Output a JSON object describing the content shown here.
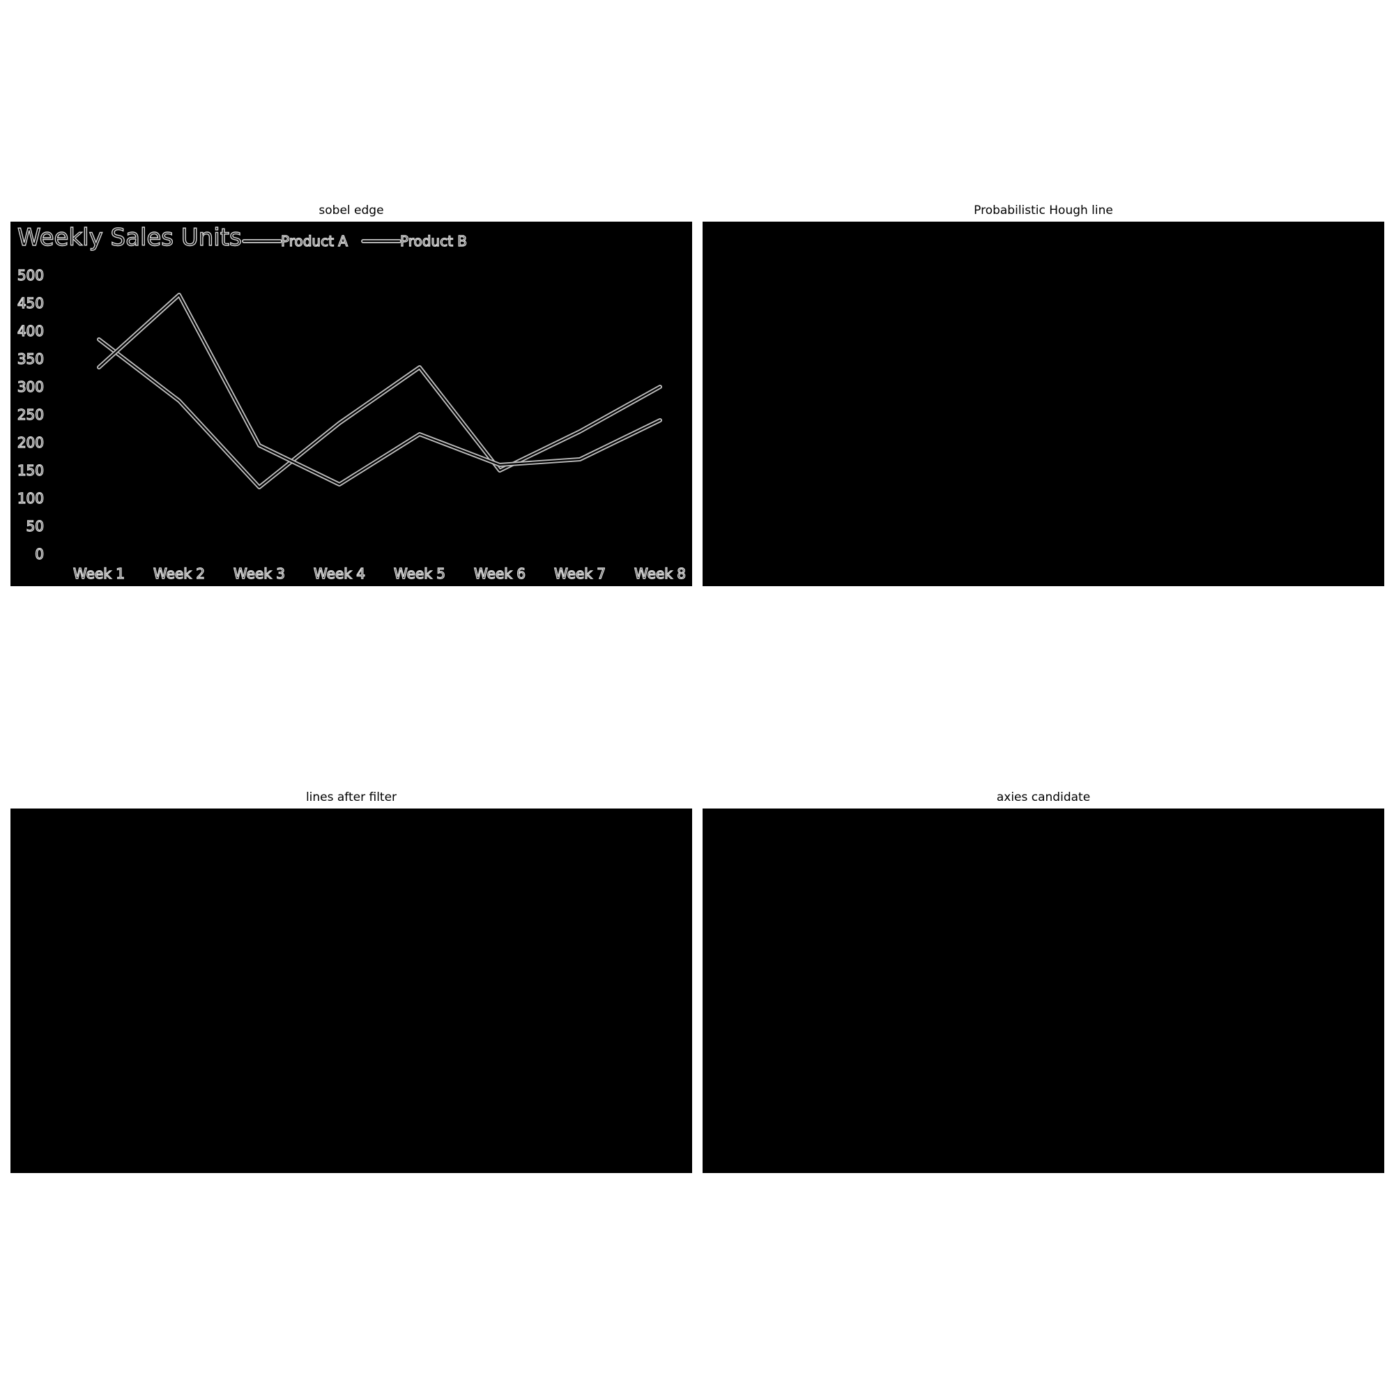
{
  "panels": [
    {
      "title": "sobel edge"
    },
    {
      "title": "Probabilistic Hough line"
    },
    {
      "title": "lines after filter"
    },
    {
      "title": "axies candidate"
    }
  ],
  "chart_data": {
    "type": "line",
    "title": "Weekly Sales Units",
    "categories": [
      "Week 1",
      "Week 2",
      "Week 3",
      "Week 4",
      "Week 5",
      "Week 6",
      "Week 7",
      "Week 8"
    ],
    "yticks": [
      "0",
      "50",
      "100",
      "150",
      "200",
      "250",
      "300",
      "350",
      "400",
      "450",
      "500"
    ],
    "ylim": [
      0,
      500
    ],
    "legend_position": "top",
    "series": [
      {
        "name": "Product A",
        "values": [
          385,
          275,
          120,
          235,
          335,
          150,
          220,
          300
        ]
      },
      {
        "name": "Product B",
        "values": [
          335,
          465,
          195,
          125,
          215,
          160,
          170,
          240
        ]
      }
    ],
    "style": {
      "background": "#000000",
      "edge_color": "#d8d8d8"
    }
  }
}
